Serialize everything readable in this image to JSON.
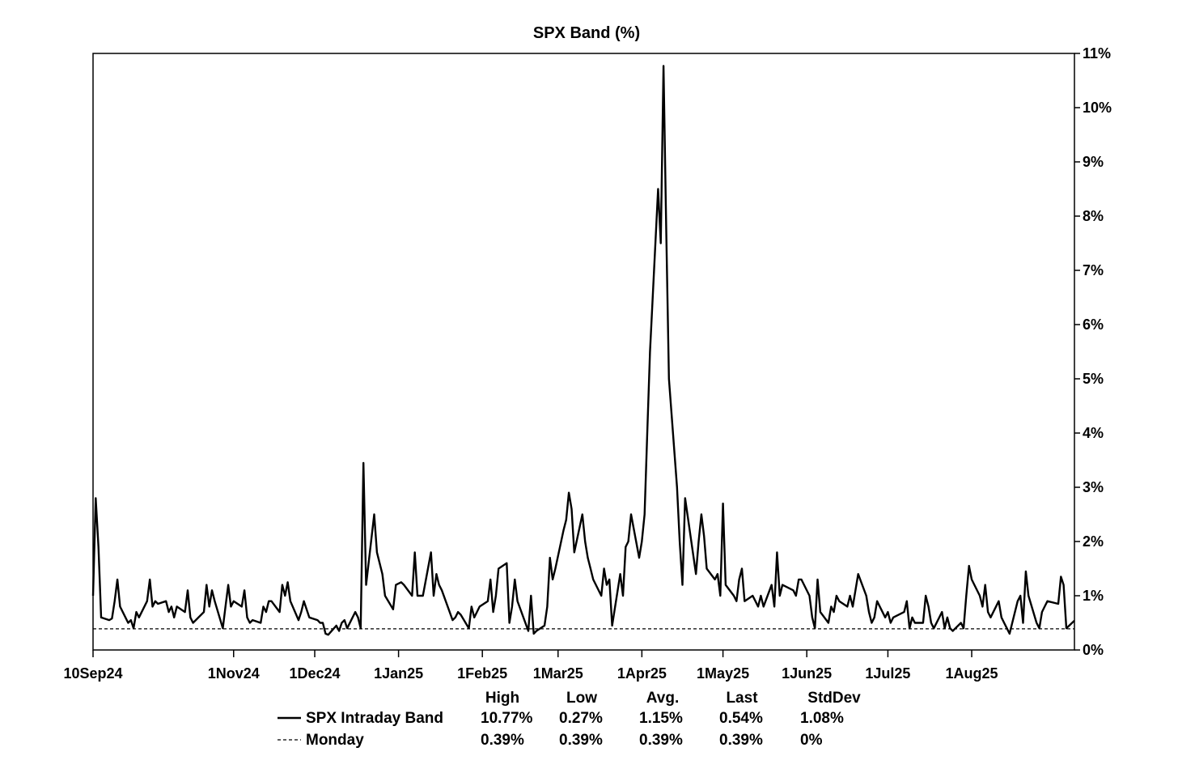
{
  "chart_data": {
    "type": "line",
    "title": "SPX Band (%)",
    "xlabel": "",
    "ylabel": "",
    "ylim": [
      0,
      11
    ],
    "y_ticks": [
      "0%",
      "1%",
      "2%",
      "3%",
      "4%",
      "5%",
      "6%",
      "7%",
      "8%",
      "9%",
      "10%",
      "11%"
    ],
    "y_axis_side": "right",
    "x_range": [
      "2024-09-10",
      "2025-09-08"
    ],
    "x_ticks": [
      {
        "date": "2024-09-10",
        "label": "10Sep24"
      },
      {
        "date": "2024-11-01",
        "label": "1Nov24"
      },
      {
        "date": "2024-12-01",
        "label": "1Dec24"
      },
      {
        "date": "2025-01-01",
        "label": "1Jan25"
      },
      {
        "date": "2025-02-01",
        "label": "1Feb25"
      },
      {
        "date": "2025-03-01",
        "label": "1Mar25"
      },
      {
        "date": "2025-04-01",
        "label": "1Apr25"
      },
      {
        "date": "2025-05-01",
        "label": "1May25"
      },
      {
        "date": "2025-06-01",
        "label": "1Jun25"
      },
      {
        "date": "2025-07-01",
        "label": "1Jul25"
      },
      {
        "date": "2025-08-01",
        "label": "1Aug25"
      }
    ],
    "grid": false,
    "legend_placement": "bottom",
    "series": [
      {
        "name": "SPX Intraday Band",
        "style": "solid",
        "color": "#000000",
        "points": [
          [
            "2024-09-10",
            1.0
          ],
          [
            "2024-09-11",
            2.8
          ],
          [
            "2024-09-12",
            1.9
          ],
          [
            "2024-09-13",
            0.6
          ],
          [
            "2024-09-16",
            0.55
          ],
          [
            "2024-09-17",
            0.58
          ],
          [
            "2024-09-18",
            0.9
          ],
          [
            "2024-09-19",
            1.3
          ],
          [
            "2024-09-20",
            0.8
          ],
          [
            "2024-09-23",
            0.5
          ],
          [
            "2024-09-24",
            0.55
          ],
          [
            "2024-09-25",
            0.4
          ],
          [
            "2024-09-26",
            0.7
          ],
          [
            "2024-09-27",
            0.6
          ],
          [
            "2024-09-30",
            0.9
          ],
          [
            "2024-10-01",
            1.3
          ],
          [
            "2024-10-02",
            0.8
          ],
          [
            "2024-10-03",
            0.9
          ],
          [
            "2024-10-04",
            0.85
          ],
          [
            "2024-10-07",
            0.9
          ],
          [
            "2024-10-08",
            0.7
          ],
          [
            "2024-10-09",
            0.8
          ],
          [
            "2024-10-10",
            0.6
          ],
          [
            "2024-10-11",
            0.8
          ],
          [
            "2024-10-14",
            0.7
          ],
          [
            "2024-10-15",
            1.1
          ],
          [
            "2024-10-16",
            0.6
          ],
          [
            "2024-10-17",
            0.5
          ],
          [
            "2024-10-18",
            0.55
          ],
          [
            "2024-10-21",
            0.7
          ],
          [
            "2024-10-22",
            1.2
          ],
          [
            "2024-10-23",
            0.8
          ],
          [
            "2024-10-24",
            1.1
          ],
          [
            "2024-10-25",
            0.9
          ],
          [
            "2024-10-28",
            0.4
          ],
          [
            "2024-10-29",
            0.8
          ],
          [
            "2024-10-30",
            1.2
          ],
          [
            "2024-10-31",
            0.8
          ],
          [
            "2024-11-01",
            0.9
          ],
          [
            "2024-11-04",
            0.8
          ],
          [
            "2024-11-05",
            1.1
          ],
          [
            "2024-11-06",
            0.6
          ],
          [
            "2024-11-07",
            0.5
          ],
          [
            "2024-11-08",
            0.55
          ],
          [
            "2024-11-11",
            0.5
          ],
          [
            "2024-11-12",
            0.8
          ],
          [
            "2024-11-13",
            0.7
          ],
          [
            "2024-11-14",
            0.9
          ],
          [
            "2024-11-15",
            0.9
          ],
          [
            "2024-11-18",
            0.7
          ],
          [
            "2024-11-19",
            1.2
          ],
          [
            "2024-11-20",
            1.0
          ],
          [
            "2024-11-21",
            1.25
          ],
          [
            "2024-11-22",
            0.9
          ],
          [
            "2024-11-25",
            0.55
          ],
          [
            "2024-11-26",
            0.7
          ],
          [
            "2024-11-27",
            0.9
          ],
          [
            "2024-11-29",
            0.6
          ],
          [
            "2024-12-02",
            0.55
          ],
          [
            "2024-12-03",
            0.5
          ],
          [
            "2024-12-04",
            0.5
          ],
          [
            "2024-12-05",
            0.3
          ],
          [
            "2024-12-06",
            0.28
          ],
          [
            "2024-12-09",
            0.45
          ],
          [
            "2024-12-10",
            0.35
          ],
          [
            "2024-12-11",
            0.5
          ],
          [
            "2024-12-12",
            0.55
          ],
          [
            "2024-12-13",
            0.4
          ],
          [
            "2024-12-16",
            0.7
          ],
          [
            "2024-12-17",
            0.6
          ],
          [
            "2024-12-18",
            0.4
          ],
          [
            "2024-12-19",
            3.45
          ],
          [
            "2024-12-20",
            1.2
          ],
          [
            "2024-12-23",
            2.5
          ],
          [
            "2024-12-24",
            1.8
          ],
          [
            "2024-12-26",
            1.4
          ],
          [
            "2024-12-27",
            1.0
          ],
          [
            "2024-12-30",
            0.75
          ],
          [
            "2024-12-31",
            1.2
          ],
          [
            "2025-01-02",
            1.25
          ],
          [
            "2025-01-03",
            1.2
          ],
          [
            "2025-01-06",
            1.0
          ],
          [
            "2025-01-07",
            1.8
          ],
          [
            "2025-01-08",
            1.0
          ],
          [
            "2025-01-10",
            1.0
          ],
          [
            "2025-01-13",
            1.8
          ],
          [
            "2025-01-14",
            1.0
          ],
          [
            "2025-01-15",
            1.4
          ],
          [
            "2025-01-16",
            1.2
          ],
          [
            "2025-01-17",
            1.1
          ],
          [
            "2025-01-21",
            0.55
          ],
          [
            "2025-01-22",
            0.6
          ],
          [
            "2025-01-23",
            0.7
          ],
          [
            "2025-01-24",
            0.65
          ],
          [
            "2025-01-27",
            0.4
          ],
          [
            "2025-01-28",
            0.8
          ],
          [
            "2025-01-29",
            0.6
          ],
          [
            "2025-01-30",
            0.7
          ],
          [
            "2025-01-31",
            0.8
          ],
          [
            "2025-02-03",
            0.9
          ],
          [
            "2025-02-04",
            1.3
          ],
          [
            "2025-02-05",
            0.7
          ],
          [
            "2025-02-06",
            1.0
          ],
          [
            "2025-02-07",
            1.5
          ],
          [
            "2025-02-10",
            1.6
          ],
          [
            "2025-02-11",
            0.5
          ],
          [
            "2025-02-12",
            0.8
          ],
          [
            "2025-02-13",
            1.3
          ],
          [
            "2025-02-14",
            0.9
          ],
          [
            "2025-02-18",
            0.35
          ],
          [
            "2025-02-19",
            1.0
          ],
          [
            "2025-02-20",
            0.3
          ],
          [
            "2025-02-21",
            0.35
          ],
          [
            "2025-02-24",
            0.45
          ],
          [
            "2025-02-25",
            0.8
          ],
          [
            "2025-02-26",
            1.7
          ],
          [
            "2025-02-27",
            1.3
          ],
          [
            "2025-02-28",
            1.5
          ],
          [
            "2025-03-03",
            2.2
          ],
          [
            "2025-03-04",
            2.4
          ],
          [
            "2025-03-05",
            2.9
          ],
          [
            "2025-03-06",
            2.6
          ],
          [
            "2025-03-07",
            1.8
          ],
          [
            "2025-03-10",
            2.5
          ],
          [
            "2025-03-11",
            2.0
          ],
          [
            "2025-03-12",
            1.7
          ],
          [
            "2025-03-13",
            1.5
          ],
          [
            "2025-03-14",
            1.3
          ],
          [
            "2025-03-17",
            1.0
          ],
          [
            "2025-03-18",
            1.5
          ],
          [
            "2025-03-19",
            1.2
          ],
          [
            "2025-03-20",
            1.3
          ],
          [
            "2025-03-21",
            0.45
          ],
          [
            "2025-03-24",
            1.4
          ],
          [
            "2025-03-25",
            1.0
          ],
          [
            "2025-03-26",
            1.9
          ],
          [
            "2025-03-27",
            2.0
          ],
          [
            "2025-03-28",
            2.5
          ],
          [
            "2025-03-31",
            1.7
          ],
          [
            "2025-04-01",
            2.0
          ],
          [
            "2025-04-02",
            2.5
          ],
          [
            "2025-04-03",
            4.0
          ],
          [
            "2025-04-04",
            5.5
          ],
          [
            "2025-04-07",
            8.5
          ],
          [
            "2025-04-08",
            7.5
          ],
          [
            "2025-04-09",
            10.77
          ],
          [
            "2025-04-10",
            7.8
          ],
          [
            "2025-04-11",
            5.0
          ],
          [
            "2025-04-14",
            3.0
          ],
          [
            "2025-04-15",
            2.0
          ],
          [
            "2025-04-16",
            1.2
          ],
          [
            "2025-04-17",
            2.8
          ],
          [
            "2025-04-21",
            1.4
          ],
          [
            "2025-04-22",
            2.0
          ],
          [
            "2025-04-23",
            2.5
          ],
          [
            "2025-04-24",
            2.1
          ],
          [
            "2025-04-25",
            1.5
          ],
          [
            "2025-04-28",
            1.3
          ],
          [
            "2025-04-29",
            1.4
          ],
          [
            "2025-04-30",
            1.0
          ],
          [
            "2025-05-01",
            2.7
          ],
          [
            "2025-05-02",
            1.2
          ],
          [
            "2025-05-05",
            1.0
          ],
          [
            "2025-05-06",
            0.9
          ],
          [
            "2025-05-07",
            1.3
          ],
          [
            "2025-05-08",
            1.5
          ],
          [
            "2025-05-09",
            0.9
          ],
          [
            "2025-05-12",
            1.0
          ],
          [
            "2025-05-13",
            0.9
          ],
          [
            "2025-05-14",
            0.8
          ],
          [
            "2025-05-15",
            1.0
          ],
          [
            "2025-05-16",
            0.8
          ],
          [
            "2025-05-19",
            1.2
          ],
          [
            "2025-05-20",
            0.8
          ],
          [
            "2025-05-21",
            1.8
          ],
          [
            "2025-05-22",
            1.0
          ],
          [
            "2025-05-23",
            1.2
          ],
          [
            "2025-05-27",
            1.1
          ],
          [
            "2025-05-28",
            1.0
          ],
          [
            "2025-05-29",
            1.3
          ],
          [
            "2025-05-30",
            1.3
          ],
          [
            "2025-06-02",
            1.0
          ],
          [
            "2025-06-03",
            0.6
          ],
          [
            "2025-06-04",
            0.4
          ],
          [
            "2025-06-05",
            1.3
          ],
          [
            "2025-06-06",
            0.7
          ],
          [
            "2025-06-09",
            0.5
          ],
          [
            "2025-06-10",
            0.8
          ],
          [
            "2025-06-11",
            0.7
          ],
          [
            "2025-06-12",
            1.0
          ],
          [
            "2025-06-13",
            0.9
          ],
          [
            "2025-06-16",
            0.8
          ],
          [
            "2025-06-17",
            1.0
          ],
          [
            "2025-06-18",
            0.8
          ],
          [
            "2025-06-20",
            1.4
          ],
          [
            "2025-06-23",
            1.0
          ],
          [
            "2025-06-24",
            0.7
          ],
          [
            "2025-06-25",
            0.5
          ],
          [
            "2025-06-26",
            0.6
          ],
          [
            "2025-06-27",
            0.9
          ],
          [
            "2025-06-30",
            0.6
          ],
          [
            "2025-07-01",
            0.7
          ],
          [
            "2025-07-02",
            0.5
          ],
          [
            "2025-07-03",
            0.6
          ],
          [
            "2025-07-07",
            0.7
          ],
          [
            "2025-07-08",
            0.9
          ],
          [
            "2025-07-09",
            0.4
          ],
          [
            "2025-07-10",
            0.6
          ],
          [
            "2025-07-11",
            0.5
          ],
          [
            "2025-07-14",
            0.5
          ],
          [
            "2025-07-15",
            1.0
          ],
          [
            "2025-07-16",
            0.8
          ],
          [
            "2025-07-17",
            0.5
          ],
          [
            "2025-07-18",
            0.4
          ],
          [
            "2025-07-21",
            0.7
          ],
          [
            "2025-07-22",
            0.4
          ],
          [
            "2025-07-23",
            0.6
          ],
          [
            "2025-07-24",
            0.4
          ],
          [
            "2025-07-25",
            0.35
          ],
          [
            "2025-07-28",
            0.5
          ],
          [
            "2025-07-29",
            0.4
          ],
          [
            "2025-07-30",
            1.0
          ],
          [
            "2025-07-31",
            1.55
          ],
          [
            "2025-08-01",
            1.3
          ],
          [
            "2025-08-04",
            1.0
          ],
          [
            "2025-08-05",
            0.8
          ],
          [
            "2025-08-06",
            1.2
          ],
          [
            "2025-08-07",
            0.7
          ],
          [
            "2025-08-08",
            0.6
          ],
          [
            "2025-08-11",
            0.9
          ],
          [
            "2025-08-12",
            0.6
          ],
          [
            "2025-08-13",
            0.5
          ],
          [
            "2025-08-14",
            0.4
          ],
          [
            "2025-08-15",
            0.3
          ],
          [
            "2025-08-18",
            0.9
          ],
          [
            "2025-08-19",
            1.0
          ],
          [
            "2025-08-20",
            0.5
          ],
          [
            "2025-08-21",
            1.45
          ],
          [
            "2025-08-22",
            1.0
          ],
          [
            "2025-08-25",
            0.5
          ],
          [
            "2025-08-26",
            0.4
          ],
          [
            "2025-08-27",
            0.7
          ],
          [
            "2025-08-28",
            0.8
          ],
          [
            "2025-08-29",
            0.9
          ],
          [
            "2025-09-02",
            0.85
          ],
          [
            "2025-09-03",
            1.35
          ],
          [
            "2025-09-04",
            1.2
          ],
          [
            "2025-09-05",
            0.4
          ],
          [
            "2025-09-08",
            0.54
          ]
        ]
      },
      {
        "name": "Monday",
        "style": "dashed",
        "color": "#000000",
        "points": [
          [
            "2024-09-10",
            0.39
          ],
          [
            "2025-09-08",
            0.39
          ]
        ]
      }
    ],
    "stats_table": {
      "headers": [
        "High",
        "Low",
        "Avg.",
        "Last",
        "StdDev"
      ],
      "rows": [
        {
          "name": "SPX Intraday Band",
          "style": "solid",
          "values": [
            "10.77%",
            "0.27%",
            "1.15%",
            "0.54%",
            "1.08%"
          ]
        },
        {
          "name": "Monday",
          "style": "dashed",
          "values": [
            "0.39%",
            "0.39%",
            "0.39%",
            "0.39%",
            "0%"
          ]
        }
      ]
    }
  }
}
